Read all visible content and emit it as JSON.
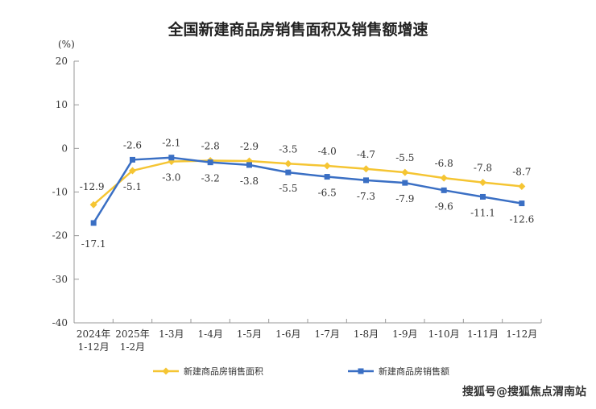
{
  "chart_data": {
    "type": "line",
    "title": "全国新建商品房销售面积及销售额增速",
    "ylabel": "(%)",
    "xlabel": "",
    "ylim": [
      -40,
      20
    ],
    "yticks": [
      20,
      10,
      0,
      -10,
      -20,
      -30,
      -40
    ],
    "categories": [
      [
        "2024年",
        "1-12月"
      ],
      [
        "2025年",
        "1-2月"
      ],
      [
        "1-3月"
      ],
      [
        "1-4月"
      ],
      [
        "1-5月"
      ],
      [
        "1-6月"
      ],
      [
        "1-7月"
      ],
      [
        "1-8月"
      ],
      [
        "1-9月"
      ],
      [
        "1-10月"
      ],
      [
        "1-11月"
      ],
      [
        "1-12月"
      ]
    ],
    "series": [
      {
        "name": "新建商品房销售面积",
        "color": "#f5c533",
        "marker": "diamond",
        "values": [
          -12.9,
          -5.1,
          -3.0,
          -2.8,
          -2.9,
          -3.5,
          -4.0,
          -4.7,
          -5.5,
          -6.8,
          -7.8,
          -8.7
        ],
        "label_pos": [
          "above",
          "below",
          "below",
          "above",
          "above",
          "above",
          "above",
          "above",
          "above",
          "above",
          "above",
          "above"
        ]
      },
      {
        "name": "新建商品房销售额",
        "color": "#3a6fc4",
        "marker": "square",
        "values": [
          -17.1,
          -2.6,
          -2.1,
          -3.2,
          -3.8,
          -5.5,
          -6.5,
          -7.3,
          -7.9,
          -9.6,
          -11.1,
          -12.6
        ],
        "label_pos": [
          "below",
          "above",
          "above",
          "below",
          "below",
          "below",
          "below",
          "below",
          "below",
          "below",
          "below",
          "below"
        ]
      }
    ],
    "grid": false,
    "legend_position": "bottom"
  },
  "watermark": "搜狐号@搜狐焦点渭南站"
}
